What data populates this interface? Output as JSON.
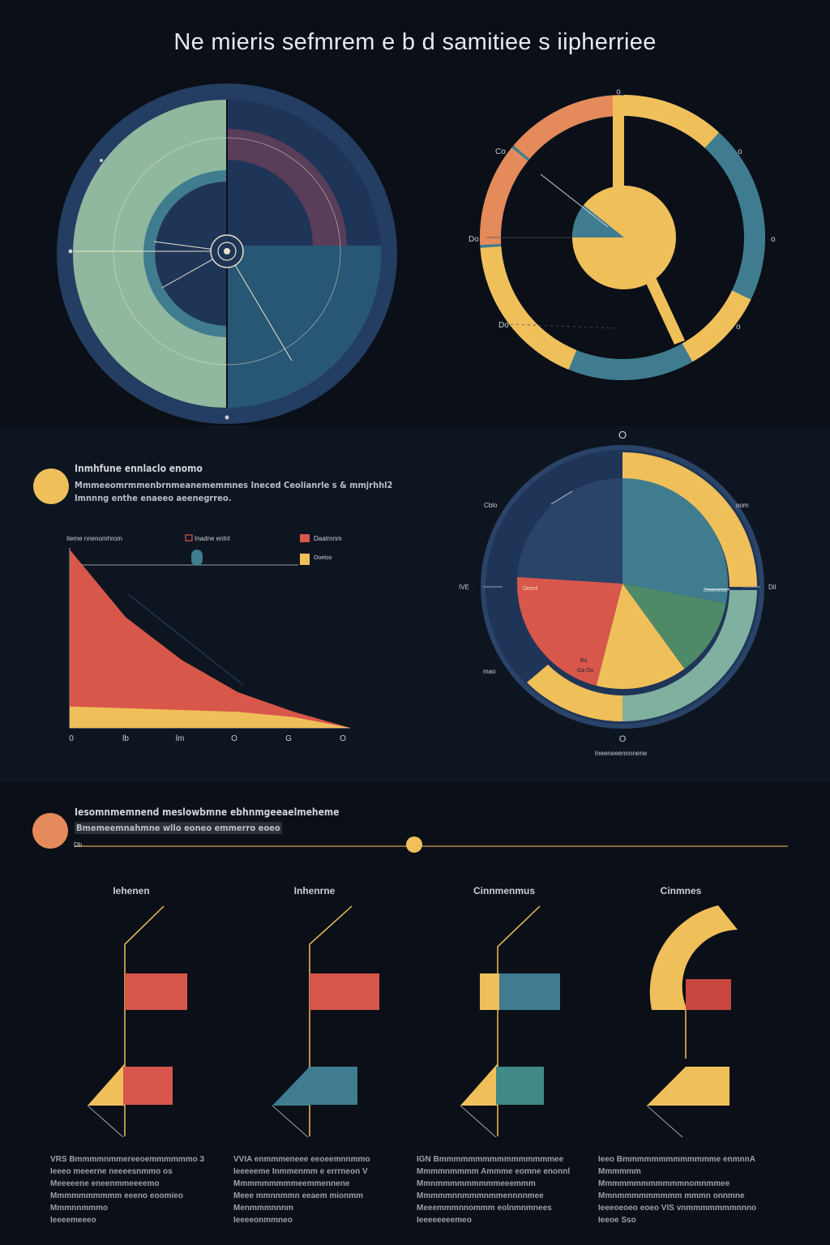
{
  "title": "Ne mieris sefmrem e b d samitiee s iipherriee",
  "colors": {
    "background": "#0b0f17",
    "navy": "#2a4368",
    "teal": "#3f7c8f",
    "sage": "#8fb89e",
    "plum": "#5a3d58",
    "orange": "#e58a5a",
    "red": "#d8574b",
    "yellow": "#efc05a",
    "deepblue": "#1f3558"
  },
  "top_right_labels": {
    "top": "o",
    "right": "o",
    "left": "Do",
    "upper_left": "Co",
    "upper_right": "o",
    "lower_right": "o",
    "lower_left": "Do"
  },
  "mid_left": {
    "heading": "Inmhfune ennlaclo enomo",
    "line1": "Mmmeeomrmmenbrnmeanememmnes Ineced Ceolianrle s & mmjrhhl2",
    "line2": "Imnnng enthe enaeeo aeenegrreo.",
    "legend_left": "Iieme nnenomhrom",
    "legend_items": [
      "Inadne enlnl",
      "Daalrnnm",
      "Ooeloo"
    ],
    "x_ticks": [
      "0",
      "lb",
      "lm",
      "O",
      "G",
      "O"
    ]
  },
  "mid_right_labels": {
    "top": "O",
    "upper_left": "Cblo",
    "upper_right": "oom",
    "left": "IVE",
    "right": "Dil",
    "lower_left": "mao",
    "bottom": "O",
    "bottom_caption": "Ineeneeennnnene",
    "inner_red": "Deenl",
    "inner_yellow_1": "Bo",
    "inner_yellow_2": "Ga Do",
    "inner_teal": "Eneemnoo"
  },
  "bottom": {
    "heading": "Iesomnmemnend meslowbmne ebhnmgeeaelmeheme",
    "subheading": "Bmemeemnahmne wllo eoneo emmerro eoeo",
    "axis_left": "Db",
    "columns": [
      {
        "label": "Iehenen",
        "foot": [
          "VRS Bmmmmnmmereeoemmmmmmo 3",
          "Ieeeo meeerne neeeesnmmo os",
          "Meeeeene eneenmmeeeemo",
          "Mmmmmmmmmm eeeno eoomieo",
          "Mmmnnmmmo",
          "Ieeeemeeeo"
        ]
      },
      {
        "label": "Inhenrne",
        "foot": [
          "VVIA enmmmeneee eeoeemnnmmo",
          "Ieeeeeme Inmmenmm e errrneon V",
          "Mmmmmmmmmeemmennene",
          "Meee mmnnmmn eeaem mionmm",
          "Menmmmnnnm",
          "Ieeeeonmmneo"
        ]
      },
      {
        "label": "Cinnmenmus",
        "foot": [
          "IGN Bmmmmmmmmmmmmmmmmee",
          "Mmmmnmmmm Ammme eomne enonnl",
          "Mmnmmmmmmmmmeeemmm",
          "Mmmmmnnmmmnmmennnnmee",
          "Meeemmmnnommm eolnmnmnees",
          "Ieeeeeeeemeo"
        ]
      },
      {
        "label": "Cinmnes",
        "foot": [
          "Ieeo Bmmmmmmmmmmmmme enmnnA",
          "Mmmmmm Mmmmmmmmmmmmnomnmmee",
          "Mmnmmmmmmmmm mmmn onnmne",
          "Ieeeoeoeo eoeo VIS vnmmmmmmmnnno",
          "Ieeoe Sso"
        ]
      }
    ]
  },
  "chart_data": [
    {
      "type": "pie",
      "title": "",
      "slices": [
        {
          "label": "",
          "value": 50,
          "color": "#8fb89e"
        },
        {
          "label": "",
          "value": 25,
          "color": "#1f3558"
        },
        {
          "label": "",
          "value": 25,
          "color": "#2a4368"
        }
      ]
    },
    {
      "type": "pie",
      "title": "",
      "slices": [
        {
          "label": "",
          "value": 12,
          "color": "#efc05a"
        },
        {
          "label": "",
          "value": 20,
          "color": "#3f7c8f"
        },
        {
          "label": "",
          "value": 10,
          "color": "#efc05a"
        },
        {
          "label": "",
          "value": 14,
          "color": "#3f7c8f"
        },
        {
          "label": "",
          "value": 18,
          "color": "#efc05a"
        },
        {
          "label": "",
          "value": 12,
          "color": "#e58a5a"
        },
        {
          "label": "",
          "value": 14,
          "color": "#e58a5a"
        }
      ]
    },
    {
      "type": "area",
      "title": "",
      "xlabel": "",
      "ylabel": "",
      "x": [
        0,
        1,
        2,
        3,
        4,
        5
      ],
      "series": [
        {
          "name": "",
          "values": [
            100,
            62,
            38,
            20,
            9,
            0
          ],
          "color": "#d8574b"
        },
        {
          "name": "",
          "values": [
            12,
            11,
            10,
            9,
            6,
            0
          ],
          "color": "#efc05a"
        }
      ],
      "x_ticks": [
        "0",
        "lb",
        "lm",
        "O",
        "G",
        "O"
      ],
      "ylim": [
        0,
        100
      ]
    },
    {
      "type": "pie",
      "title": "",
      "slices": [
        {
          "label": "",
          "value": 28,
          "color": "#3f7c8f"
        },
        {
          "label": "",
          "value": 12,
          "color": "#4f8a68"
        },
        {
          "label": "",
          "value": 14,
          "color": "#efc05a"
        },
        {
          "label": "",
          "value": 22,
          "color": "#d8574b"
        },
        {
          "label": "",
          "value": 24,
          "color": "#2a4368"
        }
      ]
    }
  ]
}
